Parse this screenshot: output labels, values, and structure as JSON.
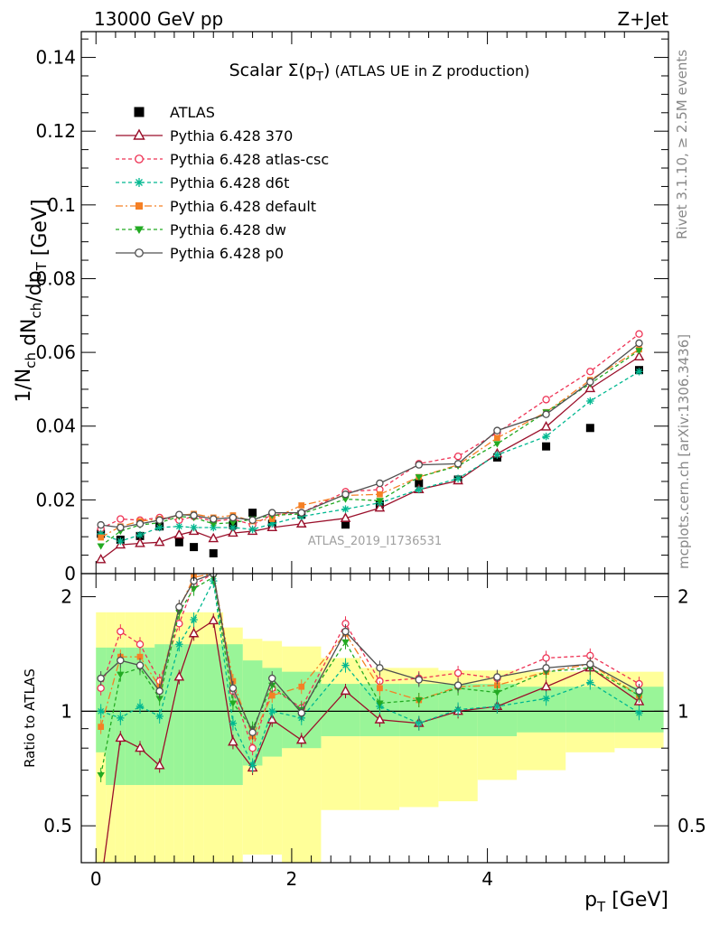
{
  "header": {
    "left": "13000 GeV pp",
    "right": "Z+Jet"
  },
  "side_labels": {
    "top": "Rivet 3.1.10, ≥ 2.5M events",
    "bottom": "mcplots.cern.ch [arXiv:1306.3436]"
  },
  "reference_id": "ATLAS_2019_I1736531",
  "chart_data": [
    {
      "type": "scatter",
      "panel": "main",
      "title": "Scalar Σ(p_T) (ATLAS UE in Z production)",
      "xlabel": "p_T [GeV]",
      "ylabel": "1/N_ch dN_ch/dp_T [GeV]",
      "xlim": [
        -0.15,
        5.85
      ],
      "ylim": [
        0,
        0.147
      ],
      "yticks": [
        "0",
        "0.02",
        "0.04",
        "0.06",
        "0.08",
        "0.1",
        "0.12",
        "0.14"
      ],
      "ytick_values": [
        0,
        0.02,
        0.04,
        0.06,
        0.08,
        0.1,
        0.12,
        0.14
      ],
      "legend_position": "top-left",
      "x": [
        0.05,
        0.25,
        0.45,
        0.65,
        0.85,
        1.0,
        1.2,
        1.4,
        1.6,
        1.8,
        2.1,
        2.55,
        2.9,
        3.3,
        3.7,
        4.1,
        4.6,
        5.05,
        5.55
      ],
      "series": [
        {
          "name": "ATLAS",
          "color": "#000000",
          "marker": "square",
          "dash": "none",
          "values": [
            0.0108,
            0.0092,
            0.0102,
            0.0128,
            0.0085,
            0.0072,
            0.0055,
            0.0132,
            0.0165,
            0.0135,
            0.016,
            0.0133,
            0.0188,
            0.0245,
            0.0255,
            0.0315,
            0.0345,
            0.0395,
            0.0552
          ]
        },
        {
          "name": "Pythia 6.428 370",
          "color": "#9a0f2a",
          "marker": "triangle-open",
          "dash": "none",
          "values": [
            0.0038,
            0.0078,
            0.0082,
            0.0085,
            0.0105,
            0.0115,
            0.0095,
            0.011,
            0.0115,
            0.0125,
            0.0135,
            0.015,
            0.0178,
            0.0228,
            0.0252,
            0.0325,
            0.0398,
            0.0502,
            0.0588
          ]
        },
        {
          "name": "Pythia 6.428 atlas-csc",
          "color": "#ee3355",
          "marker": "circle-open",
          "dash": "4,3",
          "values": [
            0.0122,
            0.0148,
            0.0145,
            0.0152,
            0.0145,
            0.0155,
            0.0142,
            0.0148,
            0.0132,
            0.016,
            0.0165,
            0.0222,
            0.0228,
            0.0298,
            0.0318,
            0.0382,
            0.0472,
            0.0548,
            0.065
          ]
        },
        {
          "name": "Pythia 6.428 d6t",
          "color": "#00b890",
          "marker": "asterisk",
          "dash": "4,3",
          "values": [
            0.0108,
            0.0088,
            0.0105,
            0.0125,
            0.0128,
            0.0125,
            0.0125,
            0.0125,
            0.012,
            0.0135,
            0.0155,
            0.0175,
            0.0192,
            0.0228,
            0.0258,
            0.0322,
            0.0372,
            0.0468,
            0.0548
          ]
        },
        {
          "name": "Pythia 6.428 default",
          "color": "#f58025",
          "marker": "square-filled",
          "dash": "8,3,2,3",
          "values": [
            0.0098,
            0.0128,
            0.0142,
            0.0148,
            0.0158,
            0.0162,
            0.0152,
            0.0158,
            0.0142,
            0.0148,
            0.0185,
            0.0212,
            0.0215,
            0.0262,
            0.0295,
            0.0368,
            0.0438,
            0.0525,
            0.0608
          ]
        },
        {
          "name": "Pythia 6.428 dw",
          "color": "#22aa22",
          "marker": "triangle-down-filled",
          "dash": "4,3",
          "values": [
            0.0075,
            0.0115,
            0.0132,
            0.0138,
            0.0155,
            0.0152,
            0.0135,
            0.0138,
            0.0148,
            0.0158,
            0.0162,
            0.0202,
            0.0198,
            0.0262,
            0.0292,
            0.0352,
            0.0438,
            0.0515,
            0.0605
          ]
        },
        {
          "name": "Pythia 6.428 p0",
          "color": "#505050",
          "marker": "circle-open",
          "dash": "none",
          "values": [
            0.0132,
            0.0125,
            0.0135,
            0.0145,
            0.016,
            0.0158,
            0.0148,
            0.0152,
            0.0145,
            0.0165,
            0.0165,
            0.0215,
            0.0245,
            0.0295,
            0.0298,
            0.0388,
            0.0432,
            0.052,
            0.0625
          ]
        }
      ]
    },
    {
      "type": "line",
      "panel": "ratio",
      "xlabel": "p_T [GeV]",
      "ylabel": "Ratio to ATLAS",
      "xlim": [
        -0.15,
        5.85
      ],
      "ylim": [
        0.4,
        2.3
      ],
      "log_scale_y": true,
      "yticks": [
        "0.5",
        "1",
        "2"
      ],
      "ytick_values": [
        0.5,
        1,
        2
      ],
      "xticks": [
        "0",
        "2",
        "4"
      ],
      "xtick_values": [
        0,
        2,
        4
      ],
      "x": [
        0.05,
        0.25,
        0.45,
        0.65,
        0.85,
        1.0,
        1.2,
        1.4,
        1.6,
        1.8,
        2.1,
        2.55,
        2.9,
        3.3,
        3.7,
        4.1,
        4.6,
        5.05,
        5.55
      ],
      "bin_edges": [
        0.0,
        0.1,
        0.2,
        0.3,
        0.4,
        0.5,
        0.6,
        0.7,
        0.8,
        0.9,
        1.0,
        1.1,
        1.3,
        1.5,
        1.7,
        1.9,
        2.3,
        2.7,
        3.1,
        3.5,
        3.9,
        4.3,
        4.8,
        5.3,
        5.8
      ],
      "band_inner": [
        [
          0.78,
          1.47
        ],
        [
          0.64,
          1.47
        ],
        [
          0.64,
          1.47
        ],
        [
          0.64,
          1.47
        ],
        [
          0.64,
          1.47
        ],
        [
          0.64,
          1.47
        ],
        [
          0.64,
          1.5
        ],
        [
          0.64,
          1.5
        ],
        [
          0.64,
          1.5
        ],
        [
          0.64,
          1.5
        ],
        [
          0.64,
          1.5
        ],
        [
          0.64,
          1.5
        ],
        [
          0.64,
          1.5
        ],
        [
          0.72,
          1.36
        ],
        [
          0.76,
          1.3
        ],
        [
          0.8,
          1.27
        ],
        [
          0.86,
          1.18
        ],
        [
          0.86,
          1.18
        ],
        [
          0.86,
          1.18
        ],
        [
          0.86,
          1.18
        ],
        [
          0.86,
          1.18
        ],
        [
          0.88,
          1.16
        ],
        [
          0.88,
          1.16
        ],
        [
          0.88,
          1.16
        ]
      ],
      "band_outer": [
        [
          0.4,
          1.82
        ],
        [
          0.4,
          1.82
        ],
        [
          0.4,
          1.82
        ],
        [
          0.4,
          1.82
        ],
        [
          0.4,
          1.82
        ],
        [
          0.4,
          1.82
        ],
        [
          0.4,
          1.82
        ],
        [
          0.4,
          1.82
        ],
        [
          0.4,
          1.82
        ],
        [
          0.4,
          1.82
        ],
        [
          0.4,
          1.82
        ],
        [
          0.4,
          1.82
        ],
        [
          0.4,
          1.66
        ],
        [
          0.42,
          1.55
        ],
        [
          0.42,
          1.53
        ],
        [
          0.4,
          1.48
        ],
        [
          0.55,
          1.38
        ],
        [
          0.55,
          1.3
        ],
        [
          0.56,
          1.3
        ],
        [
          0.58,
          1.28
        ],
        [
          0.66,
          1.28
        ],
        [
          0.7,
          1.27
        ],
        [
          0.78,
          1.27
        ],
        [
          0.8,
          1.27
        ]
      ],
      "series": [
        {
          "name": "Pythia 6.428 370",
          "color": "#9a0f2a",
          "marker": "triangle-open",
          "dash": "none",
          "values": [
            0.35,
            0.85,
            0.8,
            0.72,
            1.23,
            1.6,
            1.73,
            0.83,
            0.71,
            0.95,
            0.84,
            1.13,
            0.95,
            0.93,
            1.0,
            1.03,
            1.16,
            1.3,
            1.06
          ]
        },
        {
          "name": "Pythia 6.428 atlas-csc",
          "color": "#ee3355",
          "marker": "circle-open",
          "dash": "4,3",
          "values": [
            1.15,
            1.62,
            1.5,
            1.2,
            1.7,
            2.15,
            2.3,
            1.13,
            0.8,
            1.15,
            1.02,
            1.7,
            1.2,
            1.22,
            1.26,
            1.22,
            1.38,
            1.4,
            1.18
          ]
        },
        {
          "name": "Pythia 6.428 d6t",
          "color": "#00b890",
          "marker": "asterisk",
          "dash": "4,3",
          "values": [
            1.0,
            0.96,
            1.03,
            0.97,
            1.5,
            1.74,
            2.2,
            0.93,
            0.72,
            1.0,
            0.96,
            1.32,
            1.03,
            0.93,
            1.01,
            1.03,
            1.08,
            1.19,
            0.99
          ]
        },
        {
          "name": "Pythia 6.428 default",
          "color": "#f58025",
          "marker": "square-filled",
          "dash": "8,3,2,3",
          "values": [
            0.91,
            1.39,
            1.39,
            1.16,
            1.86,
            2.25,
            2.3,
            1.2,
            0.86,
            1.1,
            1.16,
            1.6,
            1.15,
            1.07,
            1.16,
            1.17,
            1.27,
            1.33,
            1.1
          ]
        },
        {
          "name": "Pythia 6.428 dw",
          "color": "#22aa22",
          "marker": "triangle-down-filled",
          "dash": "4,3",
          "values": [
            0.68,
            1.25,
            1.3,
            1.08,
            1.82,
            2.1,
            2.25,
            1.05,
            0.9,
            1.17,
            1.01,
            1.52,
            1.05,
            1.07,
            1.15,
            1.12,
            1.27,
            1.3,
            1.1
          ]
        },
        {
          "name": "Pythia 6.428 p0",
          "color": "#505050",
          "marker": "circle-open",
          "dash": "none",
          "values": [
            1.22,
            1.36,
            1.32,
            1.13,
            1.88,
            2.2,
            2.3,
            1.15,
            0.88,
            1.22,
            0.99,
            1.62,
            1.3,
            1.21,
            1.17,
            1.23,
            1.3,
            1.33,
            1.13
          ]
        }
      ]
    }
  ]
}
